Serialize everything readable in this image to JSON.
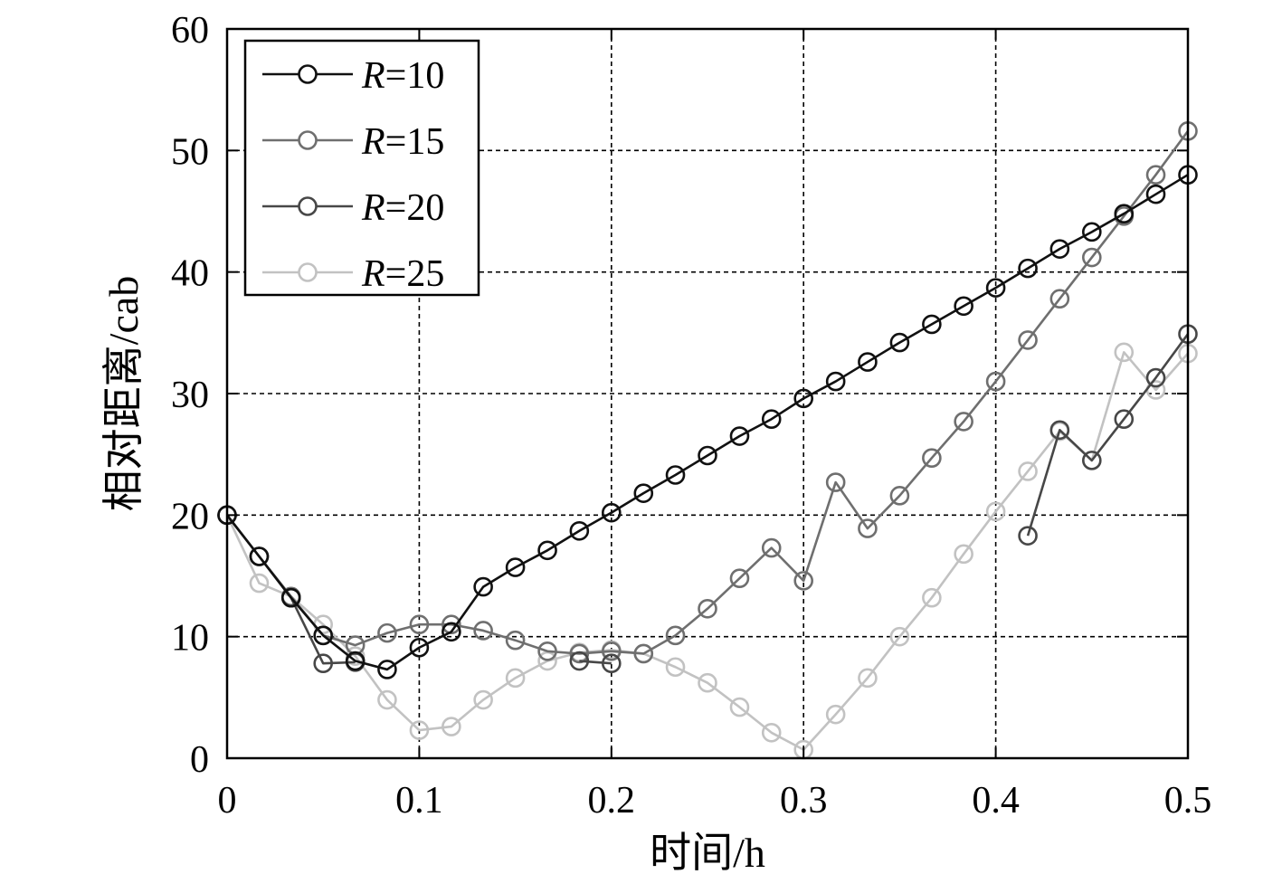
{
  "chart_data": {
    "type": "line",
    "title": "",
    "xlabel": "时间/h",
    "ylabel": "相对距离/cab",
    "xlim": [
      0,
      0.5
    ],
    "ylim": [
      0,
      60
    ],
    "x_ticks": [
      0,
      0.1,
      0.2,
      0.3,
      0.4,
      0.5
    ],
    "x_tick_labels": [
      "0",
      "0.1",
      "0.2",
      "0.3",
      "0.4",
      "0.5"
    ],
    "y_ticks": [
      0,
      10,
      20,
      30,
      40,
      50,
      60
    ],
    "y_tick_labels": [
      "0",
      "10",
      "20",
      "30",
      "40",
      "50",
      "60"
    ],
    "grid": true,
    "grid_style": "dashed",
    "legend_position": "top-left",
    "marker": "circle",
    "x": [
      0,
      0.0167,
      0.0333,
      0.05,
      0.0667,
      0.0833,
      0.1,
      0.1167,
      0.1333,
      0.15,
      0.1667,
      0.1833,
      0.2,
      0.2167,
      0.2333,
      0.25,
      0.2667,
      0.2833,
      0.3,
      0.3167,
      0.3333,
      0.35,
      0.3667,
      0.3833,
      0.4,
      0.4167,
      0.4333,
      0.45,
      0.4667,
      0.4833,
      0.5
    ],
    "series": [
      {
        "legend_var": "R",
        "legend_rest": "=10",
        "color": "#111111",
        "values": [
          20,
          16.6,
          13.2,
          10.1,
          8.0,
          7.3,
          9.1,
          10.4,
          14.1,
          15.7,
          17.1,
          18.7,
          20.2,
          21.8,
          23.3,
          24.9,
          26.5,
          27.9,
          29.6,
          31.0,
          32.6,
          34.2,
          35.7,
          37.2,
          38.7,
          40.3,
          41.9,
          43.3,
          44.8,
          46.4,
          48.0
        ]
      },
      {
        "legend_var": "R",
        "legend_rest": "=15",
        "color": "#6f6f6f",
        "values": [
          20,
          16.6,
          13.3,
          10.1,
          9.3,
          10.3,
          11.0,
          11.0,
          10.5,
          9.7,
          8.8,
          8.6,
          8.8,
          8.6,
          10.1,
          12.3,
          14.8,
          17.3,
          14.6,
          22.7,
          18.9,
          21.6,
          24.7,
          27.7,
          31.0,
          34.4,
          37.8,
          41.2,
          44.6,
          48.0,
          51.6
        ]
      },
      {
        "legend_var": "R",
        "legend_rest": "=20",
        "color": "#474747",
        "values": [
          20,
          16.6,
          13.2,
          7.8,
          7.9,
          null,
          null,
          null,
          null,
          null,
          null,
          8.0,
          7.8,
          null,
          null,
          null,
          null,
          null,
          null,
          null,
          null,
          null,
          null,
          null,
          null,
          18.3,
          27.0,
          24.5,
          27.9,
          31.3,
          34.9
        ]
      },
      {
        "legend_var": "R",
        "legend_rest": "=25",
        "color": "#c2c2c2",
        "values": [
          20,
          14.4,
          13.3,
          11.0,
          8.4,
          4.8,
          2.3,
          2.6,
          4.8,
          6.6,
          8.0,
          8.7,
          8.9,
          8.6,
          7.5,
          6.2,
          4.2,
          2.1,
          0.7,
          3.6,
          6.6,
          10.0,
          13.2,
          16.8,
          20.3,
          23.6,
          26.9,
          24.5,
          33.4,
          30.3,
          33.3
        ]
      }
    ]
  }
}
